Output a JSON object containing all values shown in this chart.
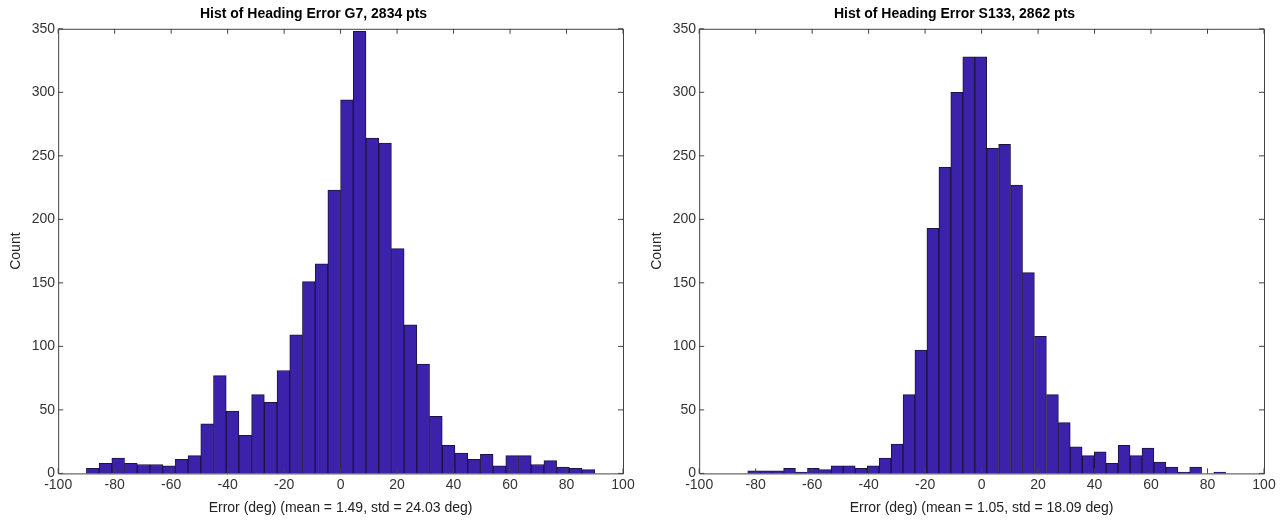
{
  "chart_data": [
    {
      "type": "histogram",
      "title": "Hist of Heading Error G7, 2834 pts",
      "xlabel": "Error (deg) (mean = 1.49, std = 24.03 deg)",
      "ylabel": "Count",
      "color": "#3c22aa",
      "bins": [
        -90,
        -85.5,
        -81,
        -76.5,
        -72,
        -67.5,
        -63,
        -58.5,
        -54,
        -49.5,
        -45,
        -40.5,
        -36,
        -31.5,
        -27,
        -22.5,
        -18,
        -13.5,
        -9,
        -4.5,
        0,
        4.5,
        9,
        13.5,
        18,
        22.5,
        27,
        31.5,
        36,
        40.5,
        45,
        49.5,
        54,
        58.5,
        63,
        67.5,
        72,
        76.5,
        81,
        85.5,
        90
      ],
      "values": [
        4,
        8,
        12,
        8,
        7,
        7,
        6,
        11,
        14,
        39,
        77,
        49,
        30,
        62,
        56,
        81,
        109,
        151,
        165,
        223,
        294,
        348,
        264,
        260,
        177,
        117,
        86,
        45,
        22,
        16,
        11,
        15,
        6,
        14,
        14,
        7,
        10,
        5,
        4,
        3
      ],
      "xlim": [
        -100,
        100
      ],
      "xticks": [
        -100,
        -80,
        -60,
        -40,
        -20,
        0,
        20,
        40,
        60,
        80,
        100
      ],
      "ylim": [
        0,
        350
      ],
      "yticks": [
        0,
        50,
        100,
        150,
        200,
        250,
        300,
        350
      ],
      "grid": false,
      "legend": false
    },
    {
      "type": "histogram",
      "title": "Hist of Heading Error S133, 2862 pts",
      "xlabel": "Error (deg) (mean = 1.05, std = 18.09 deg)",
      "ylabel": "Count",
      "color": "#3c22aa",
      "bins": [
        -82.8,
        -78.6,
        -74.3,
        -70.1,
        -65.9,
        -61.7,
        -57.4,
        -53.2,
        -49.0,
        -44.7,
        -40.5,
        -36.3,
        -32.0,
        -27.8,
        -23.6,
        -19.4,
        -15.1,
        -10.9,
        -6.7,
        -2.4,
        1.8,
        6.0,
        10.3,
        14.5,
        18.7,
        23.0,
        27.2,
        31.4,
        35.6,
        39.9,
        44.1,
        48.3,
        52.6,
        56.8,
        61.0,
        65.3,
        69.5,
        73.7,
        77.9,
        82.2,
        86.4
      ],
      "values": [
        2,
        2,
        2,
        4,
        1,
        4,
        3,
        6,
        6,
        4,
        6,
        12,
        23,
        62,
        97,
        193,
        241,
        300,
        328,
        328,
        256,
        259,
        227,
        158,
        108,
        62,
        40,
        21,
        14,
        17,
        8,
        22,
        14,
        20,
        9,
        5,
        1,
        5,
        0,
        1
      ],
      "xlim": [
        -100,
        100
      ],
      "xticks": [
        -100,
        -80,
        -60,
        -40,
        -20,
        0,
        20,
        40,
        60,
        80,
        100
      ],
      "ylim": [
        0,
        350
      ],
      "yticks": [
        0,
        50,
        100,
        150,
        200,
        250,
        300,
        350
      ],
      "grid": false,
      "legend": false
    }
  ]
}
